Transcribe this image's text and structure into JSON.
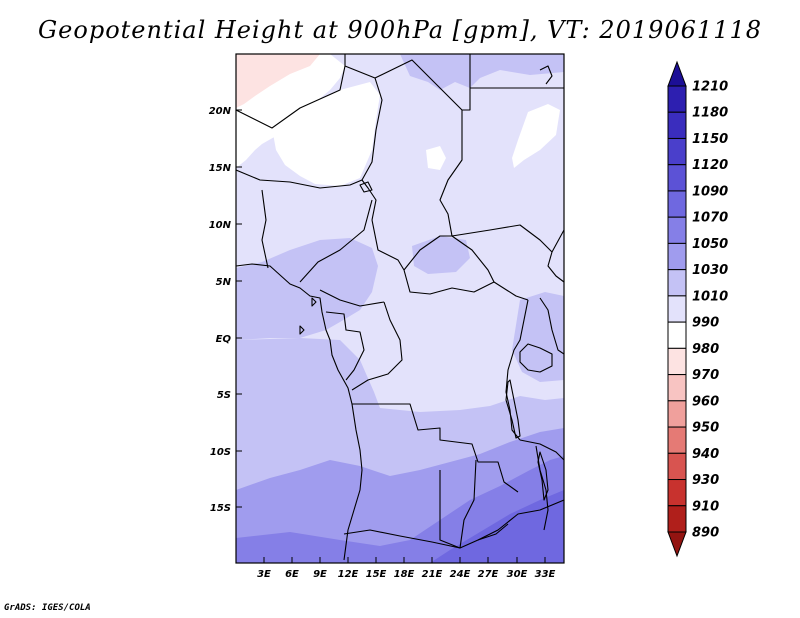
{
  "title": "Geopotential Height at 900hPa [gpm], VT: 2019061118",
  "footer": "GrADS: IGES/COLA",
  "map": {
    "lat_labels": [
      "20N",
      "15N",
      "10N",
      "5N",
      "EQ",
      "5S",
      "10S",
      "15S"
    ],
    "lon_labels": [
      "3E",
      "6E",
      "9E",
      "12E",
      "15E",
      "18E",
      "21E",
      "24E",
      "27E",
      "30E",
      "33E"
    ]
  },
  "colorbar": {
    "levels": [
      "1210",
      "1180",
      "1150",
      "1120",
      "1090",
      "1070",
      "1050",
      "1030",
      "1010",
      "990",
      "980",
      "970",
      "960",
      "950",
      "940",
      "930",
      "910",
      "890"
    ],
    "colors": [
      "#1c0f96",
      "#2d1fb0",
      "#3a2dbe",
      "#4a3fcb",
      "#5c52d6",
      "#6f68e0",
      "#857fe7",
      "#a09cee",
      "#c4c2f5",
      "#e3e2fb",
      "#ffffff",
      "#fde3e2",
      "#f8c4c2",
      "#f0a09c",
      "#e57a75",
      "#d85450",
      "#c8322e",
      "#b01f1b",
      "#931411"
    ]
  }
}
